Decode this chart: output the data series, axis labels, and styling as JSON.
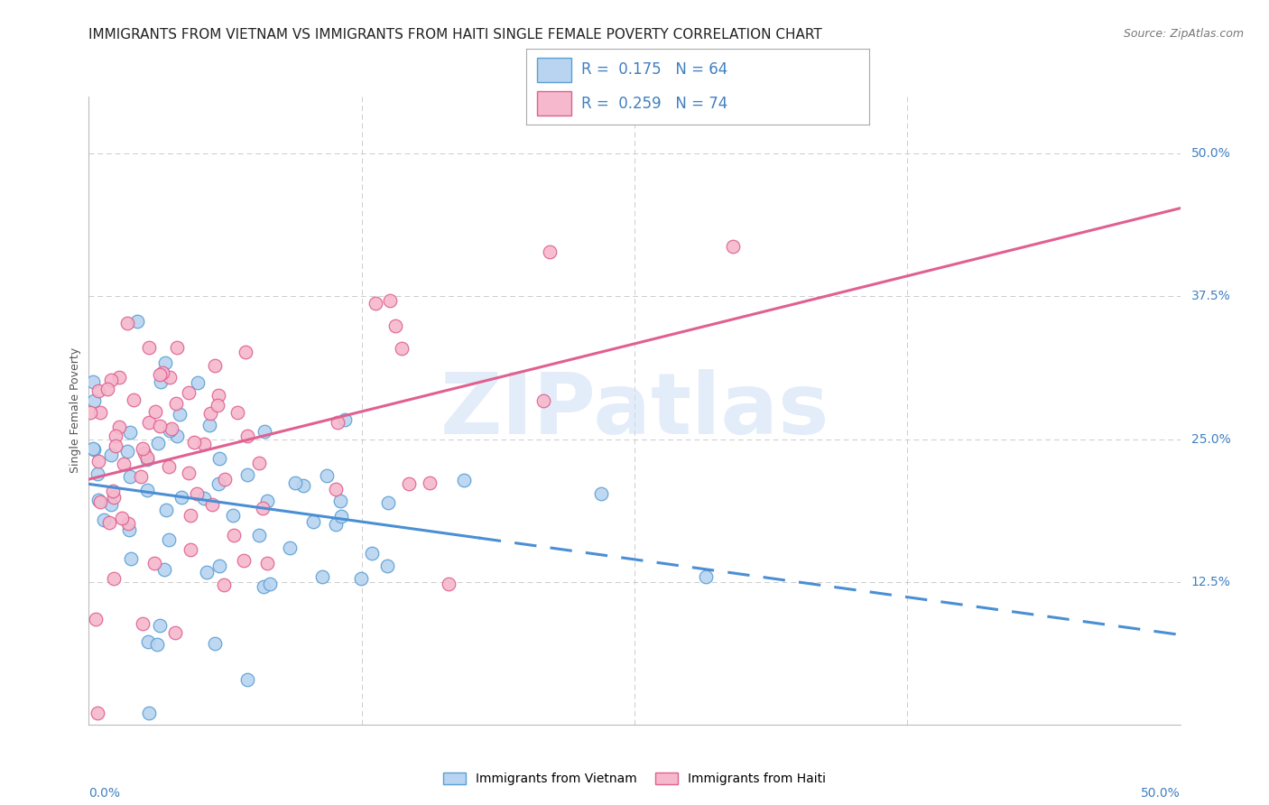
{
  "title": "IMMIGRANTS FROM VIETNAM VS IMMIGRANTS FROM HAITI SINGLE FEMALE POVERTY CORRELATION CHART",
  "source": "Source: ZipAtlas.com",
  "ylabel": "Single Female Poverty",
  "right_yticks": [
    "50.0%",
    "37.5%",
    "25.0%",
    "12.5%"
  ],
  "right_ytick_vals": [
    0.5,
    0.375,
    0.25,
    0.125
  ],
  "vietnam_R": 0.175,
  "vietnam_N": 64,
  "haiti_R": 0.259,
  "haiti_N": 74,
  "color_vietnam_fill": "#b8d4f0",
  "color_haiti_fill": "#f5b8cc",
  "color_vietnam_edge": "#5a9fd4",
  "color_haiti_edge": "#e06090",
  "color_vietnam_line": "#4a8fd4",
  "color_haiti_line": "#e06090",
  "color_blue_text": "#4080c0",
  "watermark_color": "#ccddf5",
  "xmin": 0.0,
  "xmax": 0.5,
  "ymin": 0.0,
  "ymax": 0.55,
  "background_color": "#ffffff",
  "grid_color": "#cccccc",
  "title_fontsize": 11,
  "source_fontsize": 9,
  "axis_label_fontsize": 9,
  "tick_fontsize": 10,
  "legend_fontsize": 12
}
